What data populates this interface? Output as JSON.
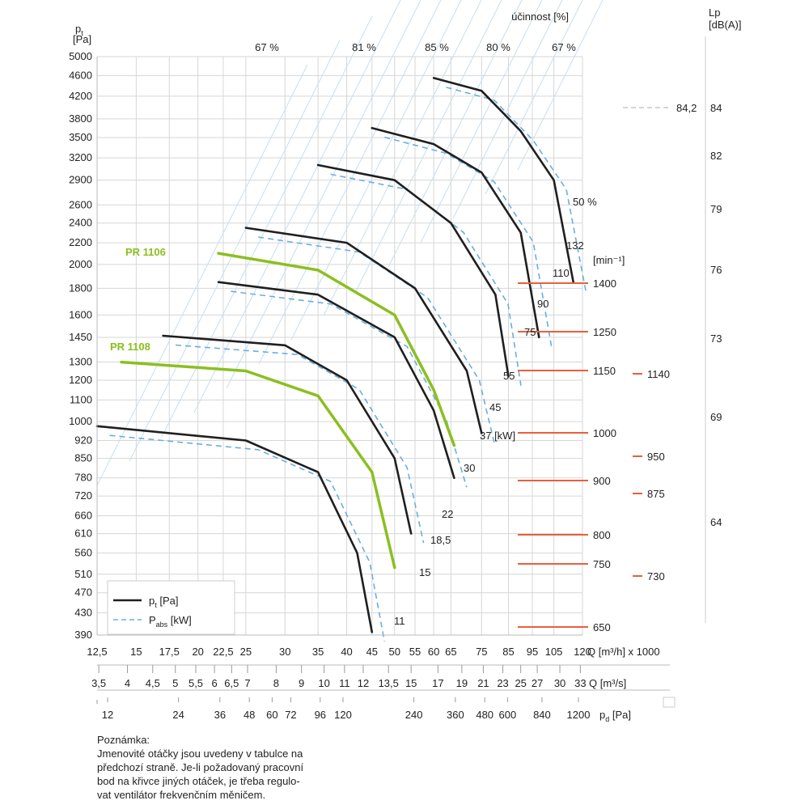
{
  "chart_data": {
    "type": "line",
    "y_axis": {
      "label_main": "p",
      "label_sub": "t",
      "unit": "[Pa]",
      "scale": "log",
      "ticks": [
        390,
        430,
        470,
        510,
        560,
        610,
        660,
        720,
        780,
        850,
        920,
        1000,
        1100,
        1200,
        1300,
        1450,
        1600,
        1800,
        2000,
        2200,
        2400,
        2600,
        2900,
        3200,
        3500,
        3800,
        4200,
        4600,
        5000
      ]
    },
    "x_axis_flow_h": {
      "unit": "Q [m³/h] x 1000",
      "scale": "log",
      "ticks": [
        "12,5",
        "15",
        "17,5",
        "20",
        "22,5",
        "25",
        "30",
        "35",
        "40",
        "45",
        "50",
        "55",
        "60",
        "65",
        "75",
        "85",
        "95",
        "105",
        "120"
      ]
    },
    "x_axis_flow_s": {
      "unit": "Q [m³/s]",
      "ticks": [
        "3,5",
        "4",
        "4,5",
        "5",
        "5,5",
        "6",
        "6,5",
        "7",
        "8",
        "9",
        "10",
        "11",
        "12",
        "13,5",
        "15",
        "17",
        "19",
        "21",
        "23",
        "25",
        "27",
        "30",
        "33"
      ]
    },
    "x_axis_pd": {
      "unit": "p",
      "unit_sub": "d",
      "unit_suffix": " [Pa]",
      "ticks": [
        "12",
        "24",
        "36",
        "48",
        "60",
        "72",
        "96",
        "120",
        "240",
        "360",
        "480",
        "600",
        "840",
        "1200"
      ]
    },
    "efficiency": {
      "title": "účinnost [%]",
      "labels": [
        "67 %",
        "81 %",
        "85 %",
        "80 %",
        "67 %",
        "50 %"
      ]
    },
    "noise": {
      "title": "Lp",
      "unit": "[dB(A)]",
      "values": [
        "84",
        "82",
        "79",
        "76",
        "73",
        "69",
        "64"
      ],
      "marker": "84,2"
    },
    "speed_unit": "[min⁻¹]",
    "speeds": [
      "1400",
      "1250",
      "1150",
      "1000",
      "900",
      "800",
      "750",
      "650"
    ],
    "speeds_other": [
      "1140",
      "950",
      "875",
      "730"
    ],
    "power_labels": [
      "132",
      "110",
      "90",
      "75",
      "55",
      "45",
      "37 [kW]",
      "30",
      "22",
      "18,5",
      "15",
      "11"
    ],
    "series": [
      {
        "name": "p",
        "points": [
          [
            60,
            4550
          ],
          [
            75,
            4300
          ],
          [
            90,
            3600
          ],
          [
            105,
            2900
          ],
          [
            115,
            1850
          ]
        ]
      },
      {
        "name": "p",
        "points": [
          [
            45,
            3650
          ],
          [
            60,
            3400
          ],
          [
            75,
            3000
          ],
          [
            90,
            2300
          ],
          [
            98,
            1450
          ]
        ]
      },
      {
        "name": "p",
        "points": [
          [
            35,
            3100
          ],
          [
            50,
            2900
          ],
          [
            65,
            2400
          ],
          [
            80,
            1750
          ],
          [
            85,
            1220
          ]
        ]
      },
      {
        "name": "p",
        "points": [
          [
            25,
            2350
          ],
          [
            40,
            2200
          ],
          [
            55,
            1800
          ],
          [
            70,
            1250
          ],
          [
            75,
            950
          ]
        ]
      },
      {
        "name": "p",
        "points": [
          [
            22,
            1850
          ],
          [
            35,
            1750
          ],
          [
            50,
            1450
          ],
          [
            60,
            1050
          ],
          [
            66,
            780
          ]
        ]
      },
      {
        "name": "p",
        "points": [
          [
            17,
            1460
          ],
          [
            30,
            1400
          ],
          [
            40,
            1200
          ],
          [
            50,
            850
          ],
          [
            54,
            610
          ]
        ]
      },
      {
        "name": "p",
        "points": [
          [
            12.5,
            980
          ],
          [
            25,
            920
          ],
          [
            35,
            800
          ],
          [
            42,
            560
          ],
          [
            45,
            395
          ]
        ]
      },
      {
        "name": "PR 1106",
        "points": [
          [
            22,
            2100
          ],
          [
            35,
            1950
          ],
          [
            50,
            1600
          ],
          [
            60,
            1150
          ],
          [
            66,
            900
          ]
        ]
      },
      {
        "name": "PR 1108",
        "points": [
          [
            14,
            1300
          ],
          [
            25,
            1250
          ],
          [
            35,
            1120
          ],
          [
            45,
            800
          ],
          [
            50,
            525
          ]
        ]
      }
    ],
    "legend": [
      {
        "main": "p",
        "sub": "t",
        "suffix": " [Pa]"
      },
      {
        "main": "P",
        "sub": "abs",
        "suffix": " [kW]"
      }
    ],
    "colors": {
      "pressure": "#1f1f1f",
      "power": "#6aaee0",
      "highlight": "#8bbf1f",
      "speed": "#e8603a",
      "grid": "#d6d6d6"
    }
  },
  "note": {
    "title": "Poznámka:",
    "lines": [
      "Jmenovité otáčky jsou uvedeny v tabulce na",
      "předchozí straně. Je-li požadovaný pracovní",
      "bod na křivce jiných otáček, je třeba regulo-",
      "vat ventilátor frekvenčním měničem."
    ]
  }
}
